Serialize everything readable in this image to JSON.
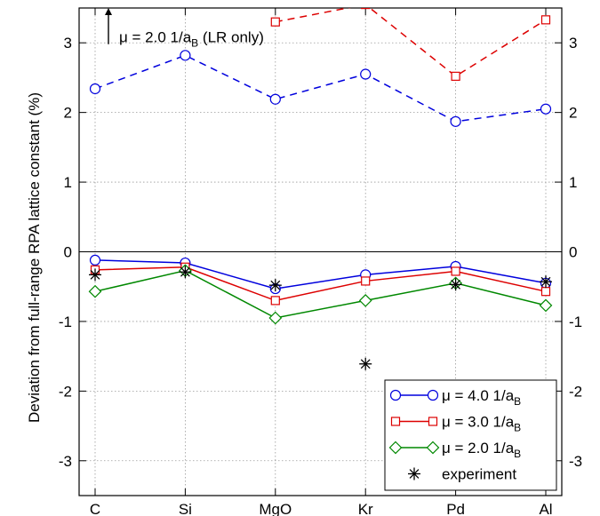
{
  "chart_data": {
    "type": "line",
    "title": "",
    "xlabel": "",
    "ylabel": "Deviation from full-range RPA lattice constant (%)",
    "categories": [
      "C",
      "Si",
      "MgO",
      "Kr",
      "Pd",
      "Al"
    ],
    "ylim": [
      -3.5,
      3.5
    ],
    "yticks": [
      -3,
      -2,
      -1,
      0,
      1,
      2,
      3
    ],
    "ytick_labels": [
      "-3",
      "-2",
      "-1",
      "0",
      "1",
      "2",
      "3"
    ],
    "grid": true,
    "legend_position": "bottom-right",
    "series": [
      {
        "name": "μ = 4.0 1/a",
        "name_sub": "B",
        "color": "#0000dd",
        "marker": "circle",
        "line": "solid",
        "values": [
          -0.12,
          -0.16,
          -0.53,
          -0.33,
          -0.21,
          -0.45
        ]
      },
      {
        "name": "μ = 3.0 1/a",
        "name_sub": "B",
        "color": "#dd0000",
        "marker": "square",
        "line": "solid",
        "values": [
          -0.26,
          -0.22,
          -0.7,
          -0.42,
          -0.28,
          -0.57
        ]
      },
      {
        "name": "μ = 2.0 1/a",
        "name_sub": "B",
        "color": "#008800",
        "marker": "diamond",
        "line": "solid",
        "values": [
          -0.57,
          -0.27,
          -0.95,
          -0.7,
          -0.45,
          -0.77
        ]
      },
      {
        "name": "experiment",
        "color": "#000000",
        "marker": "asterisk",
        "line": "none",
        "values": [
          -0.33,
          -0.29,
          -0.48,
          -1.61,
          -0.47,
          -0.43
        ]
      },
      {
        "name": "",
        "color": "#0000dd",
        "marker": "circle",
        "line": "dashed",
        "in_legend": false,
        "values": [
          2.34,
          2.82,
          2.19,
          2.55,
          1.87,
          2.05
        ]
      },
      {
        "name": "",
        "color": "#dd0000",
        "marker": "square",
        "line": "dashed",
        "in_legend": false,
        "values": [
          null,
          null,
          3.3,
          3.55,
          2.52,
          3.33
        ]
      }
    ],
    "annotation": {
      "text": "μ = 2.0 1/a",
      "sub": "B",
      "suffix": " (LR only)",
      "arrow_from": 2.98,
      "arrow_to": 3.5
    }
  }
}
